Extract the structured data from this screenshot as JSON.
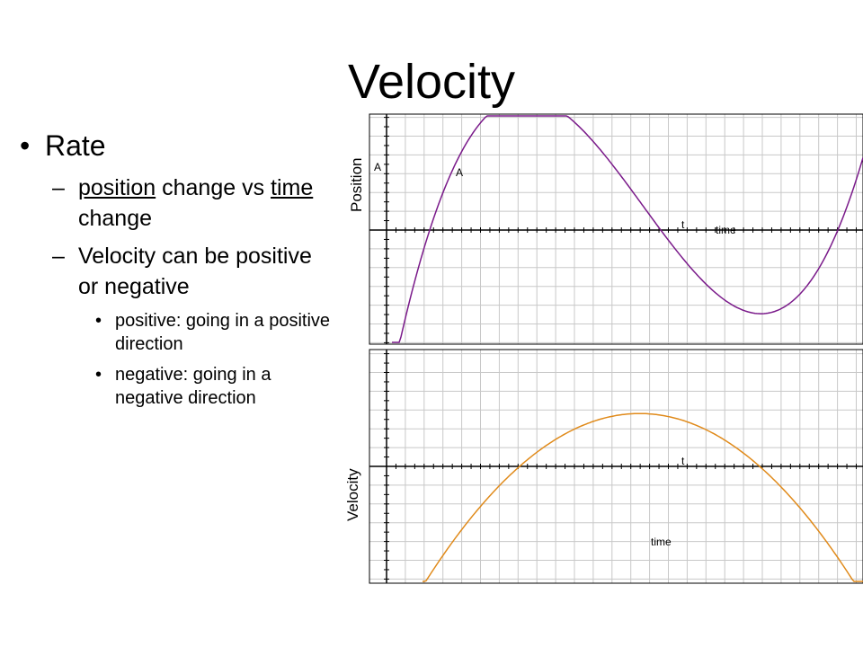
{
  "slide": {
    "title": "Velocity",
    "bullet_mark": "•",
    "dash_mark": "–",
    "bullet1": "Rate",
    "sub1": {
      "part1": "position",
      "part2": " change vs ",
      "part3": "time",
      "part4": " change"
    },
    "sub2": "Velocity can be positive or negative",
    "sub3a": "positive:  going in a positive direction",
    "sub3b": "negative: going in a negative direction"
  },
  "graphs": {
    "position": {
      "ylabel": "Position",
      "xlabel": "time",
      "t_label": "t",
      "a_label1": "A",
      "a_label2": "A",
      "curve_color": "#7a1a8a"
    },
    "velocity": {
      "ylabel": "Velocity",
      "xlabel": "time",
      "t_label": "t",
      "curve_color": "#e08a1a"
    },
    "grid_color": "#c8c8c8",
    "axis_color": "#000000"
  }
}
